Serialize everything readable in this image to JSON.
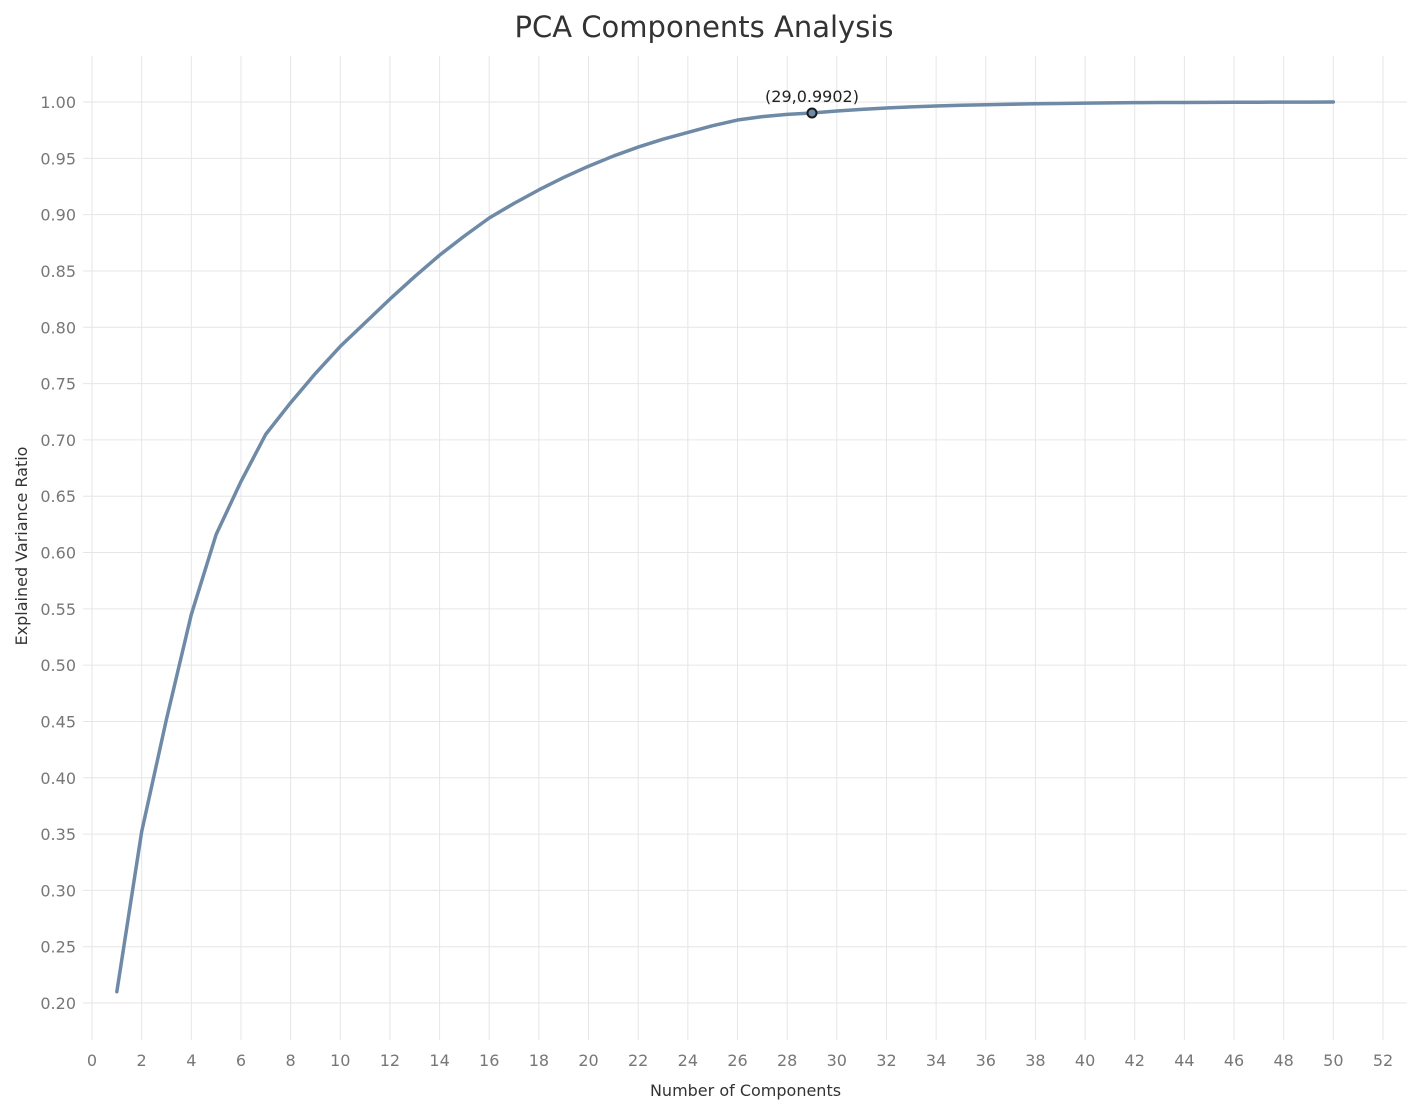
{
  "chart_data": {
    "type": "line",
    "title": "PCA Components Analysis",
    "xlabel": "Number of Components",
    "ylabel": "Explained Variance Ratio",
    "xlim": [
      0,
      52
    ],
    "ylim": [
      0.17,
      1.04
    ],
    "xticks": [
      0,
      2,
      4,
      6,
      8,
      10,
      12,
      14,
      16,
      18,
      20,
      22,
      24,
      26,
      28,
      30,
      32,
      34,
      36,
      38,
      40,
      42,
      44,
      46,
      48,
      50,
      52
    ],
    "yticks": [
      0.2,
      0.25,
      0.3,
      0.35,
      0.4,
      0.45,
      0.5,
      0.55,
      0.6,
      0.65,
      0.7,
      0.75,
      0.8,
      0.85,
      0.9,
      0.95,
      1.0
    ],
    "grid": true,
    "line_color": "#6e8aa6",
    "series": [
      {
        "x": [
          1,
          2,
          3,
          4,
          5,
          6,
          7,
          8,
          9,
          10,
          11,
          12,
          13,
          14,
          15,
          16,
          17,
          18,
          19,
          20,
          21,
          22,
          23,
          24,
          25,
          26,
          27,
          28,
          29,
          30,
          31,
          32,
          33,
          34,
          35,
          36,
          37,
          38,
          39,
          40,
          41,
          42,
          43,
          44,
          45,
          46,
          47,
          48,
          49,
          50
        ],
        "values": [
          0.21,
          0.352,
          0.452,
          0.545,
          0.616,
          0.663,
          0.705,
          0.733,
          0.759,
          0.783,
          0.804,
          0.825,
          0.845,
          0.864,
          0.881,
          0.897,
          0.91,
          0.922,
          0.933,
          0.943,
          0.952,
          0.96,
          0.967,
          0.973,
          0.979,
          0.984,
          0.987,
          0.989,
          0.9902,
          0.992,
          0.9935,
          0.9947,
          0.9957,
          0.9965,
          0.9971,
          0.9976,
          0.998,
          0.9984,
          0.9987,
          0.999,
          0.9992,
          0.9994,
          0.9995,
          0.9996,
          0.9997,
          0.9998,
          0.9998,
          0.9999,
          0.9999,
          1.0
        ]
      }
    ],
    "annotations": [
      {
        "x": 29,
        "y": 0.9902,
        "text": "(29,0.9902)"
      }
    ]
  }
}
